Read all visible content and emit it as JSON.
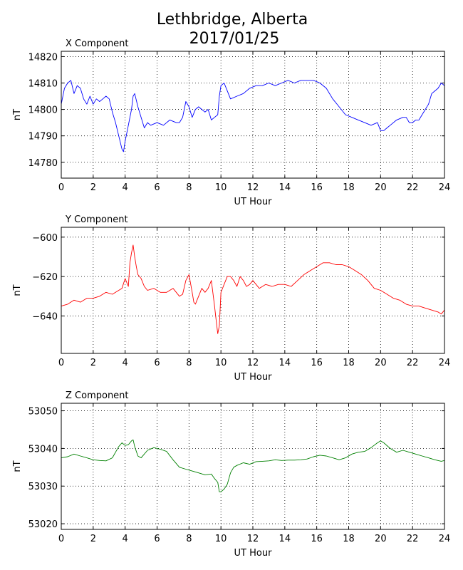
{
  "title_line1": "Lethbridge, Alberta",
  "title_line2": "2017/01/25",
  "chart_data": [
    {
      "type": "line",
      "title": "X Component",
      "xlabel": "UT Hour",
      "ylabel": "nT",
      "xlim": [
        0,
        24
      ],
      "ylim": [
        14774,
        14822
      ],
      "xticks": [
        0,
        2,
        4,
        6,
        8,
        10,
        12,
        14,
        16,
        18,
        20,
        22,
        24
      ],
      "yticks": [
        14780,
        14790,
        14800,
        14810,
        14820
      ],
      "grid": true,
      "series": [
        {
          "color": "#0000ff",
          "x": [
            0,
            0.2,
            0.4,
            0.6,
            0.8,
            1.0,
            1.2,
            1.4,
            1.6,
            1.8,
            2.0,
            2.2,
            2.4,
            2.6,
            2.8,
            3.0,
            3.2,
            3.4,
            3.6,
            3.8,
            3.9,
            4.0,
            4.2,
            4.4,
            4.5,
            4.6,
            4.8,
            5.0,
            5.2,
            5.4,
            5.6,
            6.0,
            6.4,
            6.8,
            7.2,
            7.4,
            7.6,
            7.8,
            8.0,
            8.2,
            8.4,
            8.6,
            8.8,
            9.0,
            9.2,
            9.4,
            9.6,
            9.8,
            9.9,
            10.0,
            10.2,
            10.4,
            10.6,
            11.0,
            11.4,
            11.8,
            12.2,
            12.6,
            13.0,
            13.4,
            13.8,
            14.2,
            14.6,
            15.0,
            15.4,
            15.8,
            16.2,
            16.6,
            17.0,
            17.4,
            17.8,
            18.2,
            18.6,
            19.0,
            19.4,
            19.8,
            20.0,
            20.2,
            20.4,
            20.6,
            21.0,
            21.4,
            21.6,
            21.8,
            22.0,
            22.2,
            22.4,
            22.6,
            22.8,
            23.0,
            23.2,
            23.4,
            23.6,
            23.8,
            24.0
          ],
          "y": [
            14802,
            14808,
            14810,
            14811,
            14806,
            14809,
            14808,
            14804,
            14802,
            14805,
            14802,
            14804,
            14803,
            14804,
            14805,
            14804,
            14799,
            14795,
            14790,
            14785,
            14784,
            14788,
            14794,
            14800,
            14805,
            14806,
            14801,
            14797,
            14793,
            14795,
            14794,
            14795,
            14794,
            14796,
            14795,
            14795,
            14797,
            14803,
            14801,
            14797,
            14800,
            14801,
            14800,
            14799,
            14800,
            14796,
            14797,
            14798,
            14805,
            14809,
            14810,
            14807,
            14804,
            14805,
            14806,
            14808,
            14809,
            14809,
            14810,
            14809,
            14810,
            14811,
            14810,
            14811,
            14811,
            14811,
            14810,
            14808,
            14804,
            14801,
            14798,
            14797,
            14796,
            14795,
            14794,
            14795,
            14792,
            14792,
            14793,
            14794,
            14796,
            14797,
            14797,
            14795,
            14795,
            14796,
            14796,
            14798,
            14800,
            14802,
            14806,
            14807,
            14808,
            14810,
            14809
          ]
        }
      ]
    },
    {
      "type": "line",
      "title": "Y Component",
      "xlabel": "UT Hour",
      "ylabel": "nT",
      "xlim": [
        0,
        24
      ],
      "ylim": [
        -659,
        -595
      ],
      "xticks": [
        0,
        2,
        4,
        6,
        8,
        10,
        12,
        14,
        16,
        18,
        20,
        22,
        24
      ],
      "yticks": [
        -640,
        -620,
        -600
      ],
      "grid": true,
      "series": [
        {
          "color": "#ff0000",
          "x": [
            0,
            0.4,
            0.8,
            1.2,
            1.6,
            2.0,
            2.4,
            2.8,
            3.2,
            3.6,
            3.8,
            4.0,
            4.2,
            4.3,
            4.4,
            4.5,
            4.6,
            4.7,
            4.8,
            5.0,
            5.2,
            5.4,
            5.8,
            6.2,
            6.6,
            7.0,
            7.4,
            7.6,
            7.8,
            8.0,
            8.2,
            8.3,
            8.4,
            8.6,
            8.8,
            9.0,
            9.2,
            9.4,
            9.6,
            9.7,
            9.8,
            9.9,
            10.0,
            10.2,
            10.4,
            10.6,
            10.8,
            11.0,
            11.2,
            11.4,
            11.6,
            11.8,
            12.0,
            12.4,
            12.8,
            13.2,
            13.6,
            14.0,
            14.4,
            14.8,
            15.2,
            15.6,
            16.0,
            16.4,
            16.8,
            17.2,
            17.6,
            18.0,
            18.4,
            18.8,
            19.2,
            19.6,
            20.0,
            20.4,
            20.8,
            21.2,
            21.6,
            22.0,
            22.4,
            22.8,
            23.2,
            23.6,
            23.8,
            24.0
          ],
          "y": [
            -635,
            -634,
            -632,
            -633,
            -631,
            -631,
            -630,
            -628,
            -629,
            -627,
            -626,
            -621,
            -625,
            -613,
            -608,
            -604,
            -610,
            -615,
            -619,
            -621,
            -625,
            -627,
            -626,
            -628,
            -628,
            -626,
            -630,
            -629,
            -622,
            -619,
            -628,
            -633,
            -634,
            -630,
            -626,
            -628,
            -626,
            -622,
            -635,
            -642,
            -649,
            -645,
            -628,
            -624,
            -620,
            -620,
            -622,
            -625,
            -620,
            -622,
            -625,
            -624,
            -622,
            -626,
            -624,
            -625,
            -624,
            -624,
            -625,
            -622,
            -619,
            -617,
            -615,
            -613,
            -613,
            -614,
            -614,
            -615,
            -617,
            -619,
            -622,
            -626,
            -627,
            -629,
            -631,
            -632,
            -634,
            -635,
            -635,
            -636,
            -637,
            -638,
            -639,
            -637
          ]
        }
      ]
    },
    {
      "type": "line",
      "title": "Z Component",
      "xlabel": "UT Hour",
      "ylabel": "nT",
      "xlim": [
        0,
        24
      ],
      "ylim": [
        53018.5,
        53052
      ],
      "xticks": [
        0,
        2,
        4,
        6,
        8,
        10,
        12,
        14,
        16,
        18,
        20,
        22,
        24
      ],
      "yticks": [
        53020,
        53030,
        53040,
        53050
      ],
      "grid": true,
      "series": [
        {
          "color": "#008000",
          "x": [
            0,
            0.4,
            0.8,
            1.2,
            1.6,
            2.0,
            2.4,
            2.8,
            3.2,
            3.6,
            3.8,
            4.0,
            4.2,
            4.4,
            4.5,
            4.6,
            4.8,
            5.0,
            5.4,
            5.8,
            6.2,
            6.6,
            7.0,
            7.4,
            7.8,
            8.2,
            8.6,
            9.0,
            9.4,
            9.6,
            9.8,
            9.9,
            10.0,
            10.2,
            10.4,
            10.6,
            10.8,
            11.0,
            11.4,
            11.8,
            12.2,
            12.6,
            13.0,
            13.4,
            13.8,
            14.2,
            14.6,
            15.0,
            15.4,
            15.8,
            16.2,
            16.6,
            17.0,
            17.4,
            17.8,
            18.2,
            18.6,
            19.0,
            19.4,
            19.8,
            20.0,
            20.2,
            20.6,
            21.0,
            21.4,
            21.8,
            22.2,
            22.6,
            23.0,
            23.4,
            23.8,
            24.0
          ],
          "y": [
            53037.5,
            53037.8,
            53038.5,
            53038,
            53037.5,
            53037,
            53036.8,
            53036.7,
            53037.5,
            53040.5,
            53041.5,
            53040.8,
            53041,
            53042,
            53042.3,
            53040.5,
            53038,
            53037.5,
            53039.5,
            53040.2,
            53039.8,
            53039.2,
            53037,
            53035,
            53034.5,
            53034,
            53033.5,
            53033,
            53033.2,
            53032,
            53031,
            53028.5,
            53028.5,
            53029.2,
            53030.5,
            53033.5,
            53035,
            53035.5,
            53036.2,
            53035.8,
            53036.5,
            53036.6,
            53036.7,
            53037,
            53036.8,
            53036.9,
            53036.9,
            53037,
            53037.2,
            53037.8,
            53038.2,
            53038,
            53037.5,
            53037,
            53037.5,
            53038.5,
            53039,
            53039.2,
            53040.2,
            53041.5,
            53042,
            53041.5,
            53040,
            53039,
            53039.5,
            53039,
            53038.5,
            53038,
            53037.5,
            53037,
            53036.6,
            53036.8
          ]
        }
      ]
    }
  ]
}
